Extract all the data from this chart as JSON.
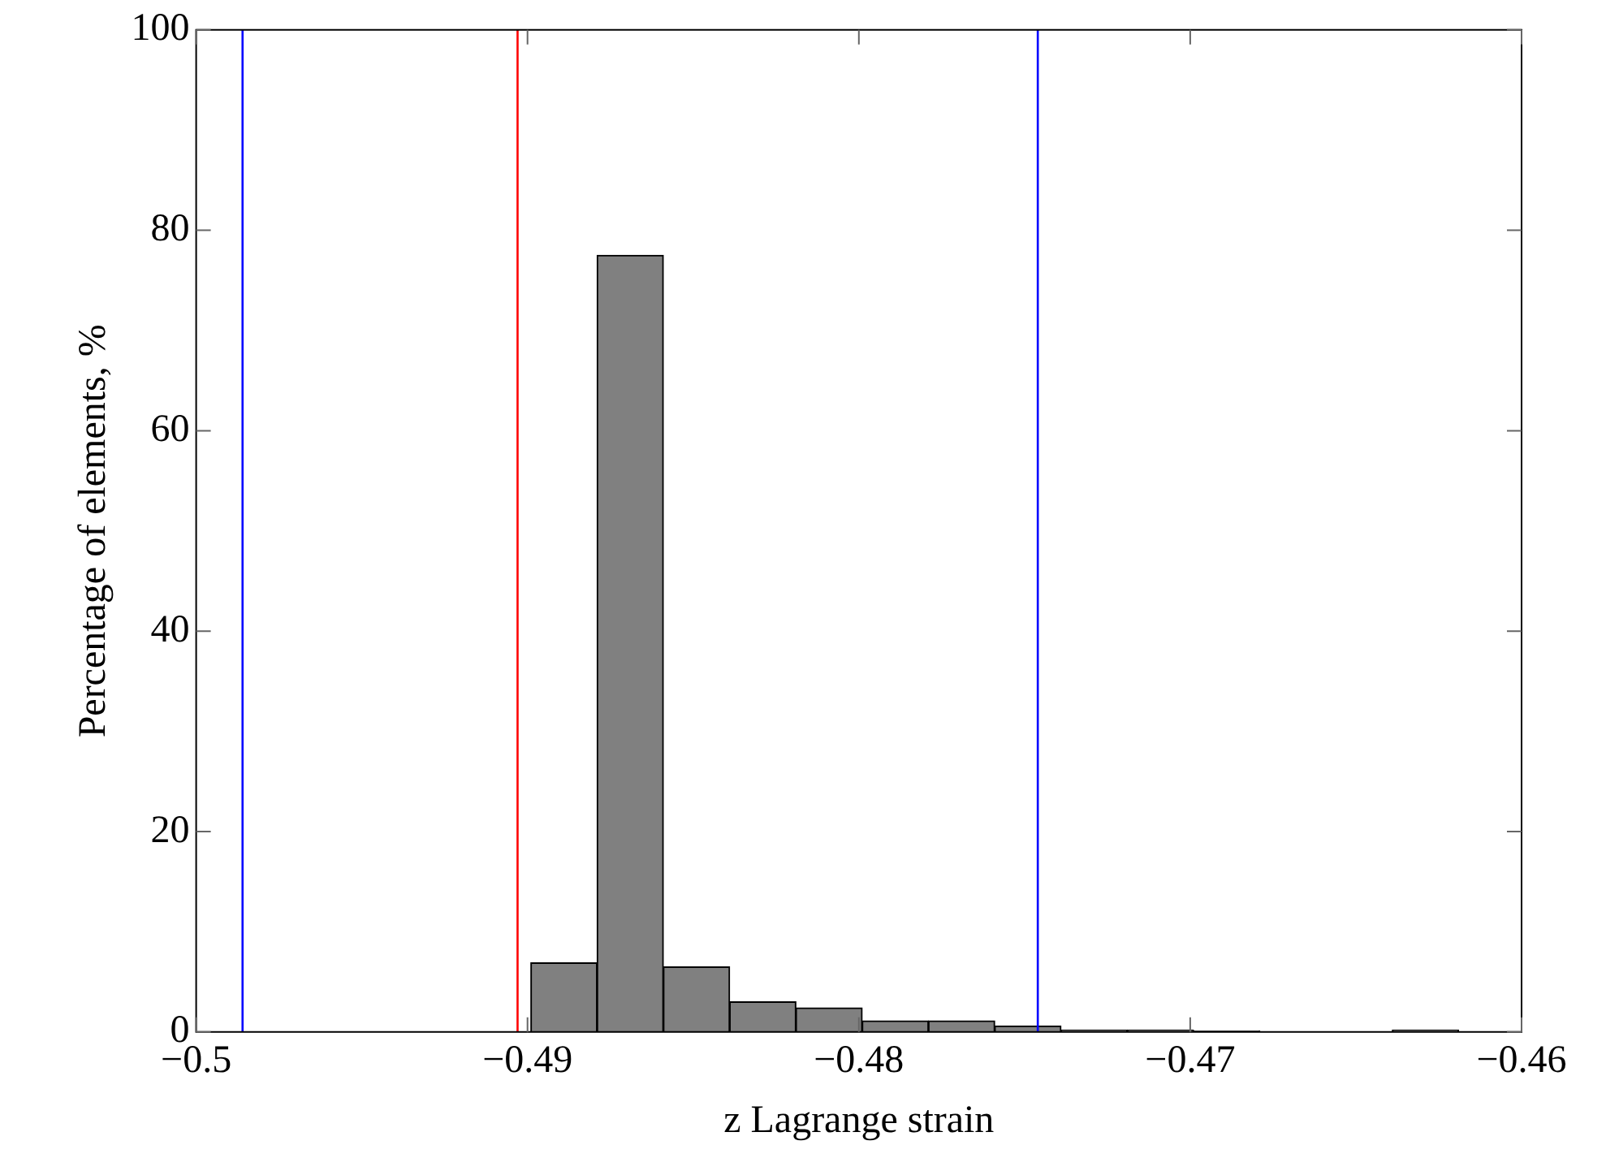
{
  "chart_data": {
    "type": "histogram",
    "xlabel": "z Lagrange strain",
    "ylabel": "Percentage of elements, %",
    "bins": [
      -0.4899,
      -0.4879,
      -0.4859,
      -0.4839,
      -0.4819,
      -0.4799,
      -0.4779,
      -0.4759,
      -0.4739,
      -0.4719,
      -0.4699,
      -0.4679,
      -0.4659,
      -0.4639,
      -0.4619
    ],
    "values": [
      6.9,
      77.5,
      6.5,
      3,
      2.4,
      1.1,
      1.1,
      0.6,
      0.2,
      0.2,
      0.1,
      0,
      0,
      0.2
    ],
    "color": "#808080",
    "xlim": [
      -0.5,
      -0.46
    ],
    "xticks": [
      {
        "value": -0.5,
        "label": "−0.5"
      },
      {
        "value": -0.49,
        "label": "−0.49"
      },
      {
        "value": -0.48,
        "label": "−0.48"
      },
      {
        "value": -0.47,
        "label": "−0.47"
      },
      {
        "value": -0.46,
        "label": "−0.46"
      }
    ],
    "ylim": [
      0,
      100
    ],
    "yticks": [
      0,
      20,
      40,
      60,
      80,
      100
    ],
    "ref_lines": [
      {
        "axis": "x",
        "value": -0.4986,
        "color": "#0000ff"
      },
      {
        "axis": "x",
        "value": -0.4903,
        "color": "#ff0000"
      },
      {
        "axis": "x",
        "value": -0.4746,
        "color": "#0000ff"
      }
    ],
    "grid": false,
    "legend": false
  }
}
